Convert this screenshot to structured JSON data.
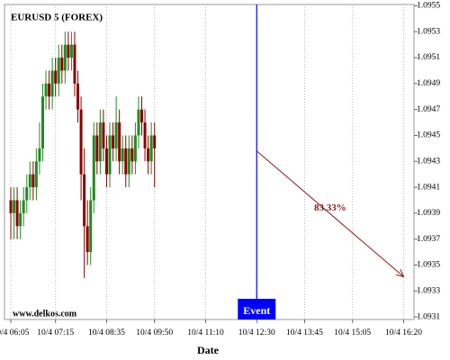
{
  "chart_data": {
    "type": "candlestick",
    "title": "EURUSD 5 (FOREX)",
    "watermark": "www.delkos.com",
    "xlabel": "Date",
    "categories": [
      "10/4 06:05",
      null,
      null,
      null,
      null,
      null,
      null,
      null,
      null,
      null,
      null,
      null,
      null,
      null,
      "10/4 07:15",
      null,
      null,
      null,
      null,
      null,
      null,
      null,
      null,
      null,
      null,
      null,
      null,
      null,
      null,
      null,
      "10/4 08:35",
      null,
      null,
      null,
      null,
      null,
      null,
      null,
      null,
      null,
      null,
      null,
      null,
      null,
      null,
      "10/4 09:50",
      null,
      null,
      null,
      null,
      null,
      null,
      null,
      null,
      null,
      null,
      null,
      null,
      null,
      null,
      null,
      "10/4 11:10",
      null,
      null,
      null,
      null,
      null,
      null,
      null,
      null,
      null,
      null,
      null,
      null,
      null,
      null,
      null,
      "10/4 12:30",
      null,
      null,
      null,
      null,
      null,
      null,
      null,
      null,
      null,
      null,
      null,
      null,
      null,
      null,
      "10/4 13:45",
      null,
      null,
      null,
      null,
      null,
      null,
      null,
      null,
      null,
      null,
      null,
      null,
      null,
      null,
      "10/4 15:05",
      null,
      null,
      null,
      null,
      null,
      null,
      null,
      null,
      null,
      null,
      null,
      null,
      null,
      null,
      null,
      "10/4 16:20"
    ],
    "open": [
      1.094,
      1.0939,
      1.094,
      1.0938,
      1.0939,
      1.094,
      1.0941,
      1.0942,
      1.0941,
      1.0943,
      1.0944,
      1.0948,
      1.0949,
      1.0948,
      1.095,
      1.0949,
      1.0951,
      1.095,
      1.0952,
      1.0951,
      1.0952,
      1.0949,
      1.0947,
      1.0942,
      1.0938,
      1.0936,
      1.094,
      1.0945,
      1.0943,
      1.0946,
      1.0944,
      1.0942,
      1.0945,
      1.0944,
      1.0946,
      1.0943,
      1.0944,
      1.0942,
      1.0944,
      1.0943,
      1.0945,
      1.0947,
      1.0946,
      1.0944,
      1.0943,
      1.0945,
      null,
      null,
      null,
      null,
      null,
      null,
      null,
      null,
      null,
      null,
      null,
      null,
      null,
      null,
      null,
      null,
      null,
      null,
      null,
      null,
      null,
      null,
      null,
      null,
      null,
      null,
      null,
      null,
      null,
      null,
      null,
      null,
      null,
      null,
      null,
      null,
      null,
      null,
      null,
      null,
      null,
      null,
      null,
      null,
      null,
      null,
      null,
      null,
      null,
      null,
      null,
      null,
      null,
      null,
      null,
      null,
      null,
      null,
      null,
      null,
      null,
      null,
      null,
      null,
      null,
      null,
      null,
      null,
      null,
      null,
      null,
      null,
      null,
      null,
      null,
      null,
      null,
      null
    ],
    "high": [
      1.0941,
      1.0941,
      1.0941,
      1.094,
      1.0941,
      1.0942,
      1.0943,
      1.0943,
      1.0944,
      1.0946,
      1.0949,
      1.095,
      1.095,
      1.0951,
      1.0951,
      1.0952,
      1.0952,
      1.0953,
      1.0953,
      1.0953,
      1.0953,
      1.095,
      1.0948,
      1.0944,
      1.094,
      1.0941,
      1.0946,
      1.0946,
      1.0947,
      1.0947,
      1.0945,
      1.0946,
      1.0946,
      1.0948,
      1.0947,
      1.0945,
      1.0945,
      1.0945,
      1.0945,
      1.0946,
      1.0948,
      1.0948,
      1.0947,
      1.0945,
      1.0946,
      1.0946,
      null,
      null,
      null,
      null,
      null,
      null,
      null,
      null,
      null,
      null,
      null,
      null,
      null,
      null,
      null,
      null,
      null,
      null,
      null,
      null,
      null,
      null,
      null,
      null,
      null,
      null,
      null,
      null,
      null,
      null,
      null,
      null,
      null,
      null,
      null,
      null,
      null,
      null,
      null,
      null,
      null,
      null,
      null,
      null,
      null,
      null,
      null,
      null,
      null,
      null,
      null,
      null,
      null,
      null,
      null,
      null,
      null,
      null,
      null,
      null,
      null,
      null,
      null,
      null,
      null,
      null,
      null,
      null,
      null,
      null,
      null,
      null,
      null,
      null,
      null,
      null,
      null,
      null
    ],
    "low": [
      1.0937,
      1.0937,
      1.0937,
      1.0937,
      1.0938,
      1.0939,
      1.094,
      1.094,
      1.094,
      1.0942,
      1.0943,
      1.0947,
      1.0947,
      1.0947,
      1.0948,
      1.0948,
      1.0949,
      1.0949,
      1.095,
      1.095,
      1.0948,
      1.0946,
      1.094,
      1.0934,
      1.0935,
      1.0935,
      1.0939,
      1.0942,
      1.0942,
      1.0943,
      1.0941,
      1.0941,
      1.0943,
      1.0943,
      1.0942,
      1.0942,
      1.0941,
      1.0941,
      1.0942,
      1.0942,
      1.0944,
      1.0945,
      1.0943,
      1.0942,
      1.0942,
      1.0941,
      null,
      null,
      null,
      null,
      null,
      null,
      null,
      null,
      null,
      null,
      null,
      null,
      null,
      null,
      null,
      null,
      null,
      null,
      null,
      null,
      null,
      null,
      null,
      null,
      null,
      null,
      null,
      null,
      null,
      null,
      null,
      null,
      null,
      null,
      null,
      null,
      null,
      null,
      null,
      null,
      null,
      null,
      null,
      null,
      null,
      null,
      null,
      null,
      null,
      null,
      null,
      null,
      null,
      null,
      null,
      null,
      null,
      null,
      null,
      null,
      null,
      null,
      null,
      null,
      null,
      null,
      null,
      null,
      null,
      null,
      null,
      null,
      null,
      null,
      null,
      null,
      null,
      null
    ],
    "close": [
      1.0939,
      1.094,
      1.0938,
      1.0939,
      1.094,
      1.0941,
      1.0942,
      1.0941,
      1.0943,
      1.0944,
      1.0948,
      1.0949,
      1.0948,
      1.095,
      1.0949,
      1.0951,
      1.095,
      1.0952,
      1.0951,
      1.0952,
      1.0949,
      1.0947,
      1.0942,
      1.0938,
      1.0936,
      1.094,
      1.0945,
      1.0943,
      1.0946,
      1.0944,
      1.0942,
      1.0945,
      1.0944,
      1.0946,
      1.0943,
      1.0944,
      1.0942,
      1.0944,
      1.0943,
      1.0945,
      1.0947,
      1.0946,
      1.0944,
      1.0943,
      1.0945,
      1.0944,
      null,
      null,
      null,
      null,
      null,
      null,
      null,
      null,
      null,
      null,
      null,
      null,
      null,
      null,
      null,
      null,
      null,
      null,
      null,
      null,
      null,
      null,
      null,
      null,
      null,
      null,
      null,
      null,
      null,
      null,
      null,
      null,
      null,
      null,
      null,
      null,
      null,
      null,
      null,
      null,
      null,
      null,
      null,
      null,
      null,
      null,
      null,
      null,
      null,
      null,
      null,
      null,
      null,
      null,
      null,
      null,
      null,
      null,
      null,
      null,
      null,
      null,
      null,
      null,
      null,
      null,
      null,
      null,
      null,
      null,
      null,
      null,
      null,
      null,
      null,
      null,
      null,
      null
    ],
    "up_color": "#228b22",
    "down_color": "#8b0000",
    "ylim": [
      1.09308,
      1.09551
    ],
    "yticks": [
      1.0931,
      1.0933,
      1.0935,
      1.0937,
      1.0939,
      1.0941,
      1.0943,
      1.0945,
      1.0947,
      1.0949,
      1.0951,
      1.0953,
      1.0955
    ],
    "grid": true,
    "event": {
      "label": "Event",
      "at": "10/4 12:30",
      "color": "#0000ff"
    },
    "forecast": {
      "from": "10/4 12:30",
      "to": "10/4 16:20",
      "start": 1.09438,
      "end": 1.09341,
      "label": "83.33%",
      "color": "#8b1a1a"
    }
  }
}
